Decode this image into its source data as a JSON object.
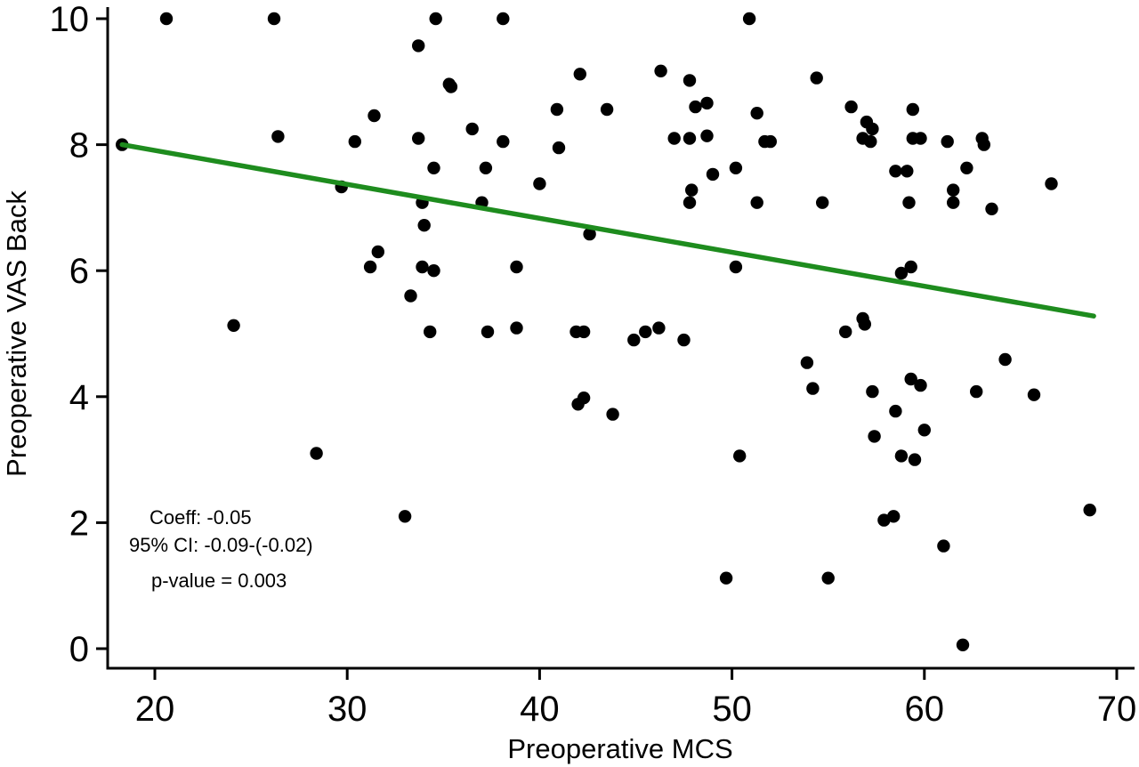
{
  "chart_data": {
    "type": "scatter",
    "xlabel": "Preoperative MCS",
    "ylabel": "Preoperative VAS Back",
    "xlim": [
      17.5,
      71
    ],
    "ylim": [
      -0.3,
      10.1
    ],
    "xticks": [
      20,
      30,
      40,
      50,
      60,
      70
    ],
    "yticks": [
      0,
      2,
      4,
      6,
      8,
      10
    ],
    "grid": false,
    "point_color": "#000000",
    "fit_color": "#1e8c1e",
    "fit_line": {
      "x": [
        18.3,
        68.8
      ],
      "y": [
        8.0,
        5.28
      ]
    },
    "annotations": {
      "coeff": "Coeff: -0.05",
      "ci": "95% CI: -0.09-(-0.02)",
      "pvalue": "p-value = 0.003"
    },
    "points": [
      {
        "x": 18.3,
        "y": 8.0
      },
      {
        "x": 20.6,
        "y": 10.0
      },
      {
        "x": 24.1,
        "y": 5.13
      },
      {
        "x": 26.2,
        "y": 10.0
      },
      {
        "x": 26.4,
        "y": 8.13
      },
      {
        "x": 28.4,
        "y": 3.1
      },
      {
        "x": 29.7,
        "y": 7.33
      },
      {
        "x": 30.4,
        "y": 8.05
      },
      {
        "x": 31.2,
        "y": 6.06
      },
      {
        "x": 31.4,
        "y": 8.46
      },
      {
        "x": 31.6,
        "y": 6.3
      },
      {
        "x": 33.0,
        "y": 2.1
      },
      {
        "x": 33.3,
        "y": 5.6
      },
      {
        "x": 33.7,
        "y": 9.57
      },
      {
        "x": 33.7,
        "y": 8.1
      },
      {
        "x": 33.9,
        "y": 7.08
      },
      {
        "x": 33.9,
        "y": 6.06
      },
      {
        "x": 34.0,
        "y": 6.72
      },
      {
        "x": 34.3,
        "y": 5.03
      },
      {
        "x": 34.5,
        "y": 7.63
      },
      {
        "x": 34.5,
        "y": 6.0
      },
      {
        "x": 34.6,
        "y": 10.0
      },
      {
        "x": 35.3,
        "y": 8.96
      },
      {
        "x": 35.4,
        "y": 8.92
      },
      {
        "x": 36.5,
        "y": 8.25
      },
      {
        "x": 37.0,
        "y": 7.08
      },
      {
        "x": 37.2,
        "y": 7.63
      },
      {
        "x": 37.3,
        "y": 5.03
      },
      {
        "x": 38.1,
        "y": 10.0
      },
      {
        "x": 38.1,
        "y": 8.05
      },
      {
        "x": 38.8,
        "y": 6.06
      },
      {
        "x": 38.8,
        "y": 5.09
      },
      {
        "x": 40.0,
        "y": 7.38
      },
      {
        "x": 40.9,
        "y": 8.56
      },
      {
        "x": 41.0,
        "y": 7.95
      },
      {
        "x": 41.9,
        "y": 5.03
      },
      {
        "x": 42.0,
        "y": 3.88
      },
      {
        "x": 42.1,
        "y": 9.12
      },
      {
        "x": 42.3,
        "y": 5.03
      },
      {
        "x": 42.3,
        "y": 3.98
      },
      {
        "x": 42.6,
        "y": 6.58
      },
      {
        "x": 43.5,
        "y": 8.56
      },
      {
        "x": 43.8,
        "y": 3.72
      },
      {
        "x": 44.9,
        "y": 4.9
      },
      {
        "x": 45.5,
        "y": 5.03
      },
      {
        "x": 46.2,
        "y": 5.09
      },
      {
        "x": 46.3,
        "y": 9.17
      },
      {
        "x": 47.0,
        "y": 8.1
      },
      {
        "x": 47.5,
        "y": 4.9
      },
      {
        "x": 47.8,
        "y": 9.02
      },
      {
        "x": 47.8,
        "y": 8.1
      },
      {
        "x": 47.8,
        "y": 7.08
      },
      {
        "x": 47.9,
        "y": 7.28
      },
      {
        "x": 48.1,
        "y": 8.6
      },
      {
        "x": 48.7,
        "y": 8.66
      },
      {
        "x": 48.7,
        "y": 8.14
      },
      {
        "x": 49.0,
        "y": 7.53
      },
      {
        "x": 49.7,
        "y": 1.12
      },
      {
        "x": 50.2,
        "y": 7.63
      },
      {
        "x": 50.2,
        "y": 6.06
      },
      {
        "x": 50.4,
        "y": 3.06
      },
      {
        "x": 50.9,
        "y": 10.0
      },
      {
        "x": 51.3,
        "y": 8.5
      },
      {
        "x": 51.3,
        "y": 7.08
      },
      {
        "x": 51.7,
        "y": 8.05
      },
      {
        "x": 52.0,
        "y": 8.05
      },
      {
        "x": 53.9,
        "y": 4.54
      },
      {
        "x": 54.2,
        "y": 4.13
      },
      {
        "x": 54.4,
        "y": 9.06
      },
      {
        "x": 54.7,
        "y": 7.08
      },
      {
        "x": 55.0,
        "y": 1.12
      },
      {
        "x": 55.9,
        "y": 5.03
      },
      {
        "x": 56.2,
        "y": 8.6
      },
      {
        "x": 56.8,
        "y": 5.24
      },
      {
        "x": 56.8,
        "y": 8.1
      },
      {
        "x": 56.9,
        "y": 5.15
      },
      {
        "x": 57.0,
        "y": 8.36
      },
      {
        "x": 57.2,
        "y": 8.05
      },
      {
        "x": 57.3,
        "y": 8.25
      },
      {
        "x": 57.3,
        "y": 4.08
      },
      {
        "x": 57.4,
        "y": 3.37
      },
      {
        "x": 57.9,
        "y": 2.04
      },
      {
        "x": 58.4,
        "y": 2.1
      },
      {
        "x": 58.5,
        "y": 3.77
      },
      {
        "x": 58.5,
        "y": 7.58
      },
      {
        "x": 58.8,
        "y": 5.96
      },
      {
        "x": 58.8,
        "y": 3.06
      },
      {
        "x": 59.1,
        "y": 7.58
      },
      {
        "x": 59.2,
        "y": 7.08
      },
      {
        "x": 59.3,
        "y": 6.06
      },
      {
        "x": 59.3,
        "y": 4.28
      },
      {
        "x": 59.4,
        "y": 8.56
      },
      {
        "x": 59.4,
        "y": 8.1
      },
      {
        "x": 59.5,
        "y": 3.0
      },
      {
        "x": 59.8,
        "y": 8.1
      },
      {
        "x": 59.8,
        "y": 4.18
      },
      {
        "x": 60.0,
        "y": 3.47
      },
      {
        "x": 61.0,
        "y": 1.63
      },
      {
        "x": 61.2,
        "y": 8.05
      },
      {
        "x": 61.5,
        "y": 7.28
      },
      {
        "x": 61.5,
        "y": 7.08
      },
      {
        "x": 62.0,
        "y": 0.06
      },
      {
        "x": 62.2,
        "y": 7.63
      },
      {
        "x": 62.7,
        "y": 4.08
      },
      {
        "x": 63.0,
        "y": 8.1
      },
      {
        "x": 63.1,
        "y": 8.0
      },
      {
        "x": 63.5,
        "y": 6.98
      },
      {
        "x": 64.2,
        "y": 4.59
      },
      {
        "x": 65.7,
        "y": 4.03
      },
      {
        "x": 66.6,
        "y": 7.38
      },
      {
        "x": 68.6,
        "y": 2.2
      }
    ]
  }
}
